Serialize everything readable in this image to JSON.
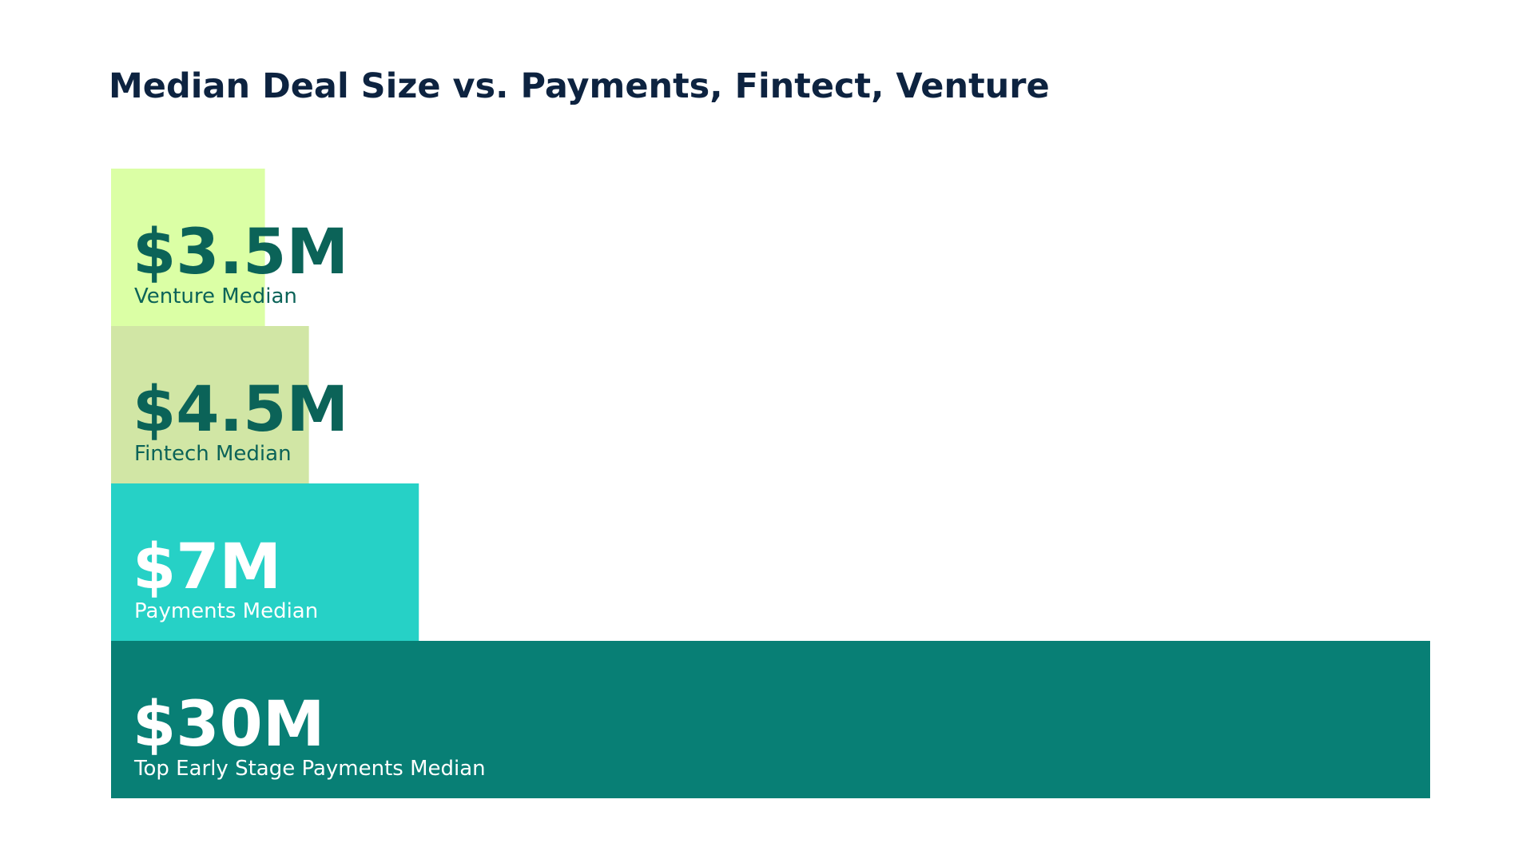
{
  "chart_data": {
    "type": "bar",
    "orientation": "horizontal",
    "title": "Median Deal Size vs. Payments, Fintect, Venture",
    "categories": [
      "Venture Median",
      "Fintech Median",
      "Payments Median",
      "Top Early Stage Payments Median"
    ],
    "values": [
      3.5,
      4.5,
      7,
      30
    ],
    "value_labels": [
      "$3.5M",
      "$4.5M",
      "$7M",
      "$30M"
    ],
    "colors": [
      "#dbffa5",
      "#d1e6a5",
      "#26d1c6",
      "#087f75"
    ],
    "label_colors": [
      "#0b6358",
      "#0b6358",
      "#ffffff",
      "#ffffff"
    ]
  }
}
